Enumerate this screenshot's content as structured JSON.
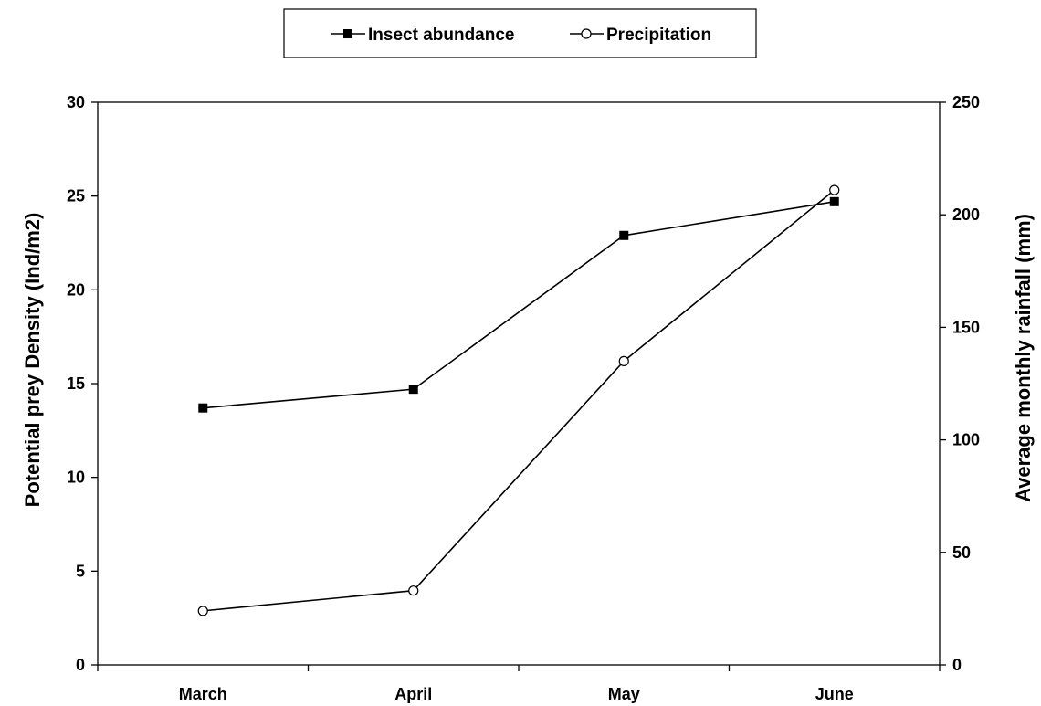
{
  "chart_data": {
    "type": "line",
    "categories": [
      "March",
      "April",
      "May",
      "June"
    ],
    "ylabel_left": "Potential prey Density (Ind/m2)",
    "ylabel_right": "Average monthly rainfall (mm)",
    "ylim_left": [
      0,
      30
    ],
    "ylim_right": [
      0,
      250
    ],
    "yticks_left": [
      "0",
      "5",
      "10",
      "15",
      "20",
      "25",
      "30"
    ],
    "yticks_right": [
      "0",
      "50",
      "100",
      "150",
      "200",
      "250"
    ],
    "grid": false,
    "legend_position": "top-center",
    "series": [
      {
        "name": "Insect abundance",
        "axis": "left",
        "marker": "filled-square",
        "color": "#000000",
        "values": [
          13.7,
          14.7,
          22.9,
          24.7
        ]
      },
      {
        "name": "Precipitation",
        "axis": "right",
        "marker": "open-circle",
        "color": "#000000",
        "values": [
          24,
          33,
          135,
          211
        ]
      }
    ]
  }
}
